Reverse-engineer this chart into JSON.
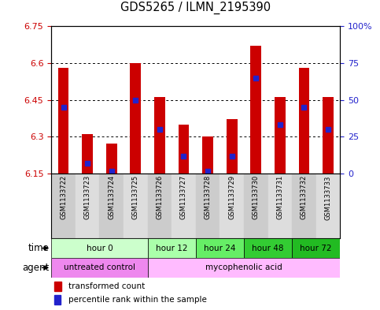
{
  "title": "GDS5265 / ILMN_2195390",
  "samples": [
    "GSM1133722",
    "GSM1133723",
    "GSM1133724",
    "GSM1133725",
    "GSM1133726",
    "GSM1133727",
    "GSM1133728",
    "GSM1133729",
    "GSM1133730",
    "GSM1133731",
    "GSM1133732",
    "GSM1133733"
  ],
  "bar_bottom": 6.15,
  "bar_tops": [
    6.58,
    6.31,
    6.27,
    6.6,
    6.46,
    6.35,
    6.3,
    6.37,
    6.67,
    6.46,
    6.58,
    6.46
  ],
  "percentile_values": [
    6.42,
    6.19,
    6.16,
    6.45,
    6.33,
    6.22,
    6.16,
    6.22,
    6.54,
    6.35,
    6.42,
    6.33
  ],
  "ylim": [
    6.15,
    6.75
  ],
  "yticks_left": [
    6.15,
    6.3,
    6.45,
    6.6,
    6.75
  ],
  "yticks_right_pct": [
    0,
    25,
    50,
    75,
    100
  ],
  "bar_color": "#cc0000",
  "percentile_color": "#2222cc",
  "background_color": "#ffffff",
  "time_groups": [
    {
      "label": "hour 0",
      "start": 0,
      "end": 4,
      "color": "#ccffcc"
    },
    {
      "label": "hour 12",
      "start": 4,
      "end": 6,
      "color": "#aaffaa"
    },
    {
      "label": "hour 24",
      "start": 6,
      "end": 8,
      "color": "#66ee66"
    },
    {
      "label": "hour 48",
      "start": 8,
      "end": 10,
      "color": "#33cc33"
    },
    {
      "label": "hour 72",
      "start": 10,
      "end": 12,
      "color": "#22bb22"
    }
  ],
  "agent_groups": [
    {
      "label": "untreated control",
      "start": 0,
      "end": 4,
      "color": "#ee88ee"
    },
    {
      "label": "mycophenolic acid",
      "start": 4,
      "end": 12,
      "color": "#ffbbff"
    }
  ],
  "legend_red": "transformed count",
  "legend_blue": "percentile rank within the sample",
  "time_label": "time",
  "agent_label": "agent",
  "sample_bg_even": "#cccccc",
  "sample_bg_odd": "#dddddd",
  "bar_width": 0.45
}
